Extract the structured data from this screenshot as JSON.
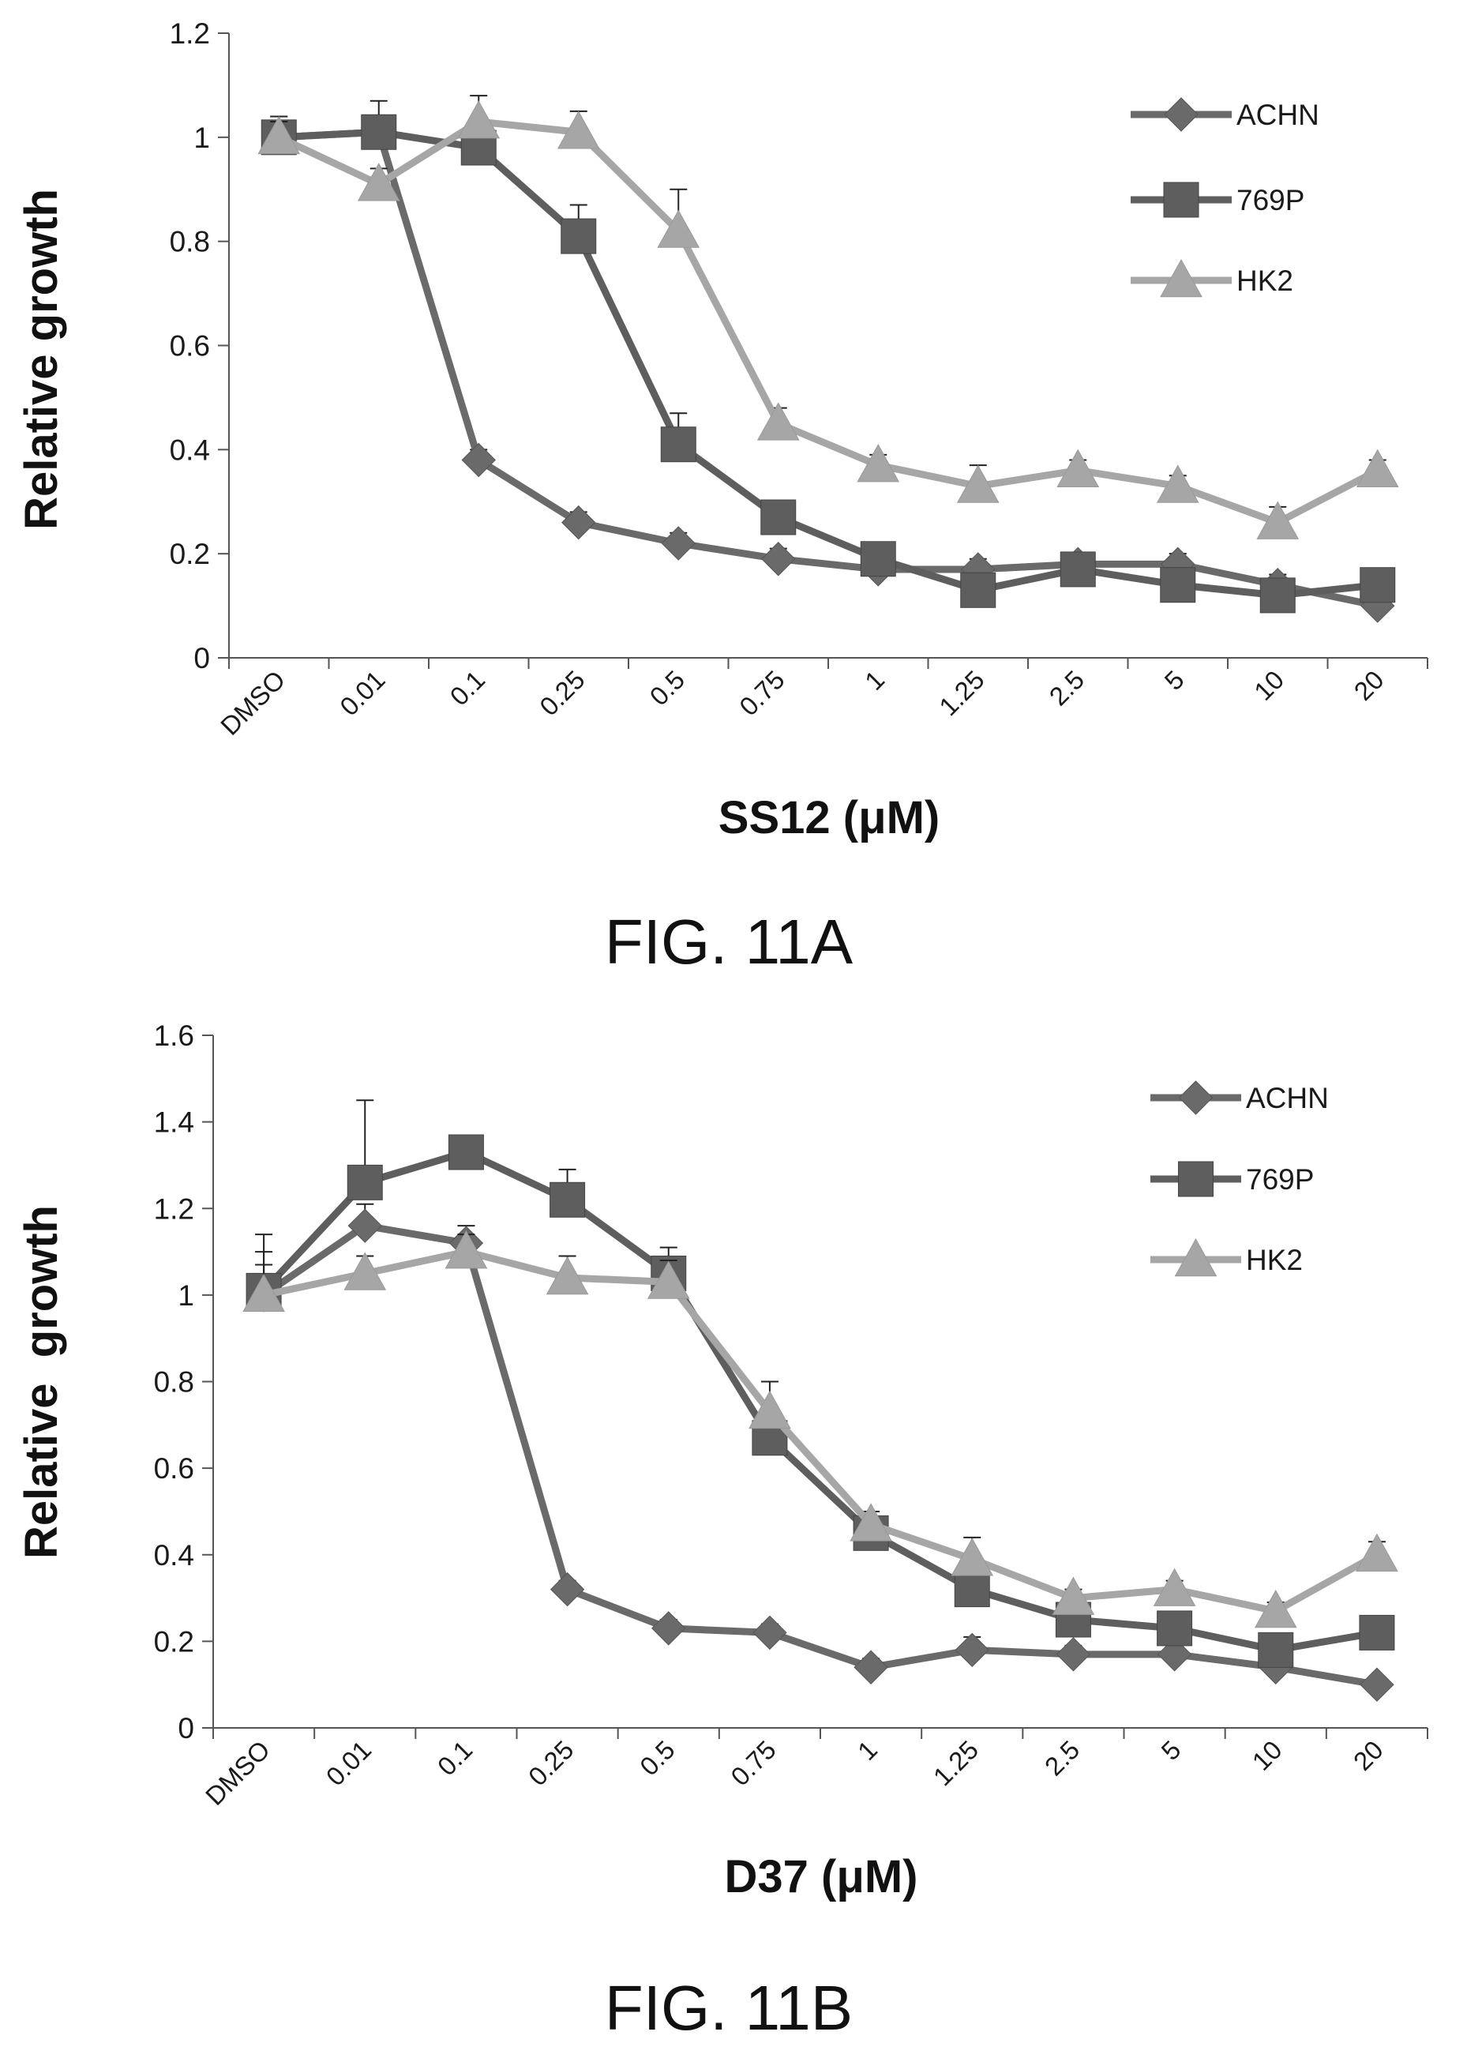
{
  "chart_data": [
    {
      "type": "line",
      "figure_label": "FIG. 11A",
      "xlabel": "SS12 (μM)",
      "ylabel": "Relative growth",
      "ylim": [
        0,
        1.2
      ],
      "yticks": [
        "0",
        "0.2",
        "0.4",
        "0.6",
        "0.8",
        "1",
        "1.2"
      ],
      "categories": [
        "DMSO",
        "0.01",
        "0.1",
        "0.25",
        "0.5",
        "0.75",
        "1",
        "1.25",
        "2.5",
        "5",
        "10",
        "20"
      ],
      "legend_position": "top-right",
      "series": [
        {
          "name": "ACHN",
          "marker": "diamond",
          "color": "#6a6a6a",
          "values": [
            1.0,
            1.01,
            0.38,
            0.26,
            0.22,
            0.19,
            0.17,
            0.17,
            0.18,
            0.18,
            0.14,
            0.1
          ],
          "errors": [
            0.04,
            0.03,
            0.02,
            0.02,
            0.02,
            0.02,
            0.02,
            0.02,
            0.02,
            0.02,
            0.02,
            0.02
          ]
        },
        {
          "name": "769P",
          "marker": "square",
          "color": "#5e5e5e",
          "values": [
            1.0,
            1.01,
            0.98,
            0.81,
            0.41,
            0.27,
            0.19,
            0.13,
            0.17,
            0.14,
            0.12,
            0.14
          ],
          "errors": [
            0.04,
            0.06,
            0.03,
            0.06,
            0.06,
            0.03,
            0.02,
            0.02,
            0.02,
            0.02,
            0.02,
            0.02
          ]
        },
        {
          "name": "HK2",
          "marker": "triangle",
          "color": "#a6a6a6",
          "values": [
            1.0,
            0.91,
            1.03,
            1.01,
            0.82,
            0.45,
            0.37,
            0.33,
            0.36,
            0.33,
            0.26,
            0.36
          ],
          "errors": [
            0.03,
            0.03,
            0.05,
            0.04,
            0.08,
            0.03,
            0.02,
            0.04,
            0.02,
            0.02,
            0.03,
            0.02
          ]
        }
      ]
    },
    {
      "type": "line",
      "figure_label": "FIG. 11B",
      "xlabel": "D37 (μM)",
      "ylabel": "Relative  growth",
      "ylim": [
        0,
        1.6
      ],
      "yticks": [
        "0",
        "0.2",
        "0.4",
        "0.6",
        "0.8",
        "1",
        "1.2",
        "1.4",
        "1.6"
      ],
      "categories": [
        "DMSO",
        "0.01",
        "0.1",
        "0.25",
        "0.5",
        "0.75",
        "1",
        "1.25",
        "2.5",
        "5",
        "10",
        "20"
      ],
      "legend_position": "top-right",
      "series": [
        {
          "name": "ACHN",
          "marker": "diamond",
          "color": "#6a6a6a",
          "values": [
            1.0,
            1.16,
            1.12,
            0.32,
            0.23,
            0.22,
            0.14,
            0.18,
            0.17,
            0.17,
            0.14,
            0.1
          ],
          "errors": [
            0.07,
            0.05,
            0.04,
            0.02,
            0.02,
            0.02,
            0.02,
            0.03,
            0.02,
            0.02,
            0.02,
            0.01
          ]
        },
        {
          "name": "769P",
          "marker": "square",
          "color": "#5e5e5e",
          "values": [
            1.01,
            1.26,
            1.33,
            1.22,
            1.05,
            0.67,
            0.45,
            0.32,
            0.25,
            0.23,
            0.18,
            0.22
          ],
          "errors": [
            0.13,
            0.19,
            0.03,
            0.07,
            0.06,
            0.05,
            0.05,
            0.04,
            0.02,
            0.03,
            0.02,
            0.02
          ]
        },
        {
          "name": "HK2",
          "marker": "triangle",
          "color": "#a6a6a6",
          "values": [
            1.0,
            1.05,
            1.1,
            1.04,
            1.03,
            0.73,
            0.47,
            0.39,
            0.3,
            0.32,
            0.27,
            0.4
          ],
          "errors": [
            0.1,
            0.04,
            0.04,
            0.05,
            0.05,
            0.07,
            0.03,
            0.05,
            0.02,
            0.02,
            0.02,
            0.03
          ]
        }
      ]
    }
  ]
}
